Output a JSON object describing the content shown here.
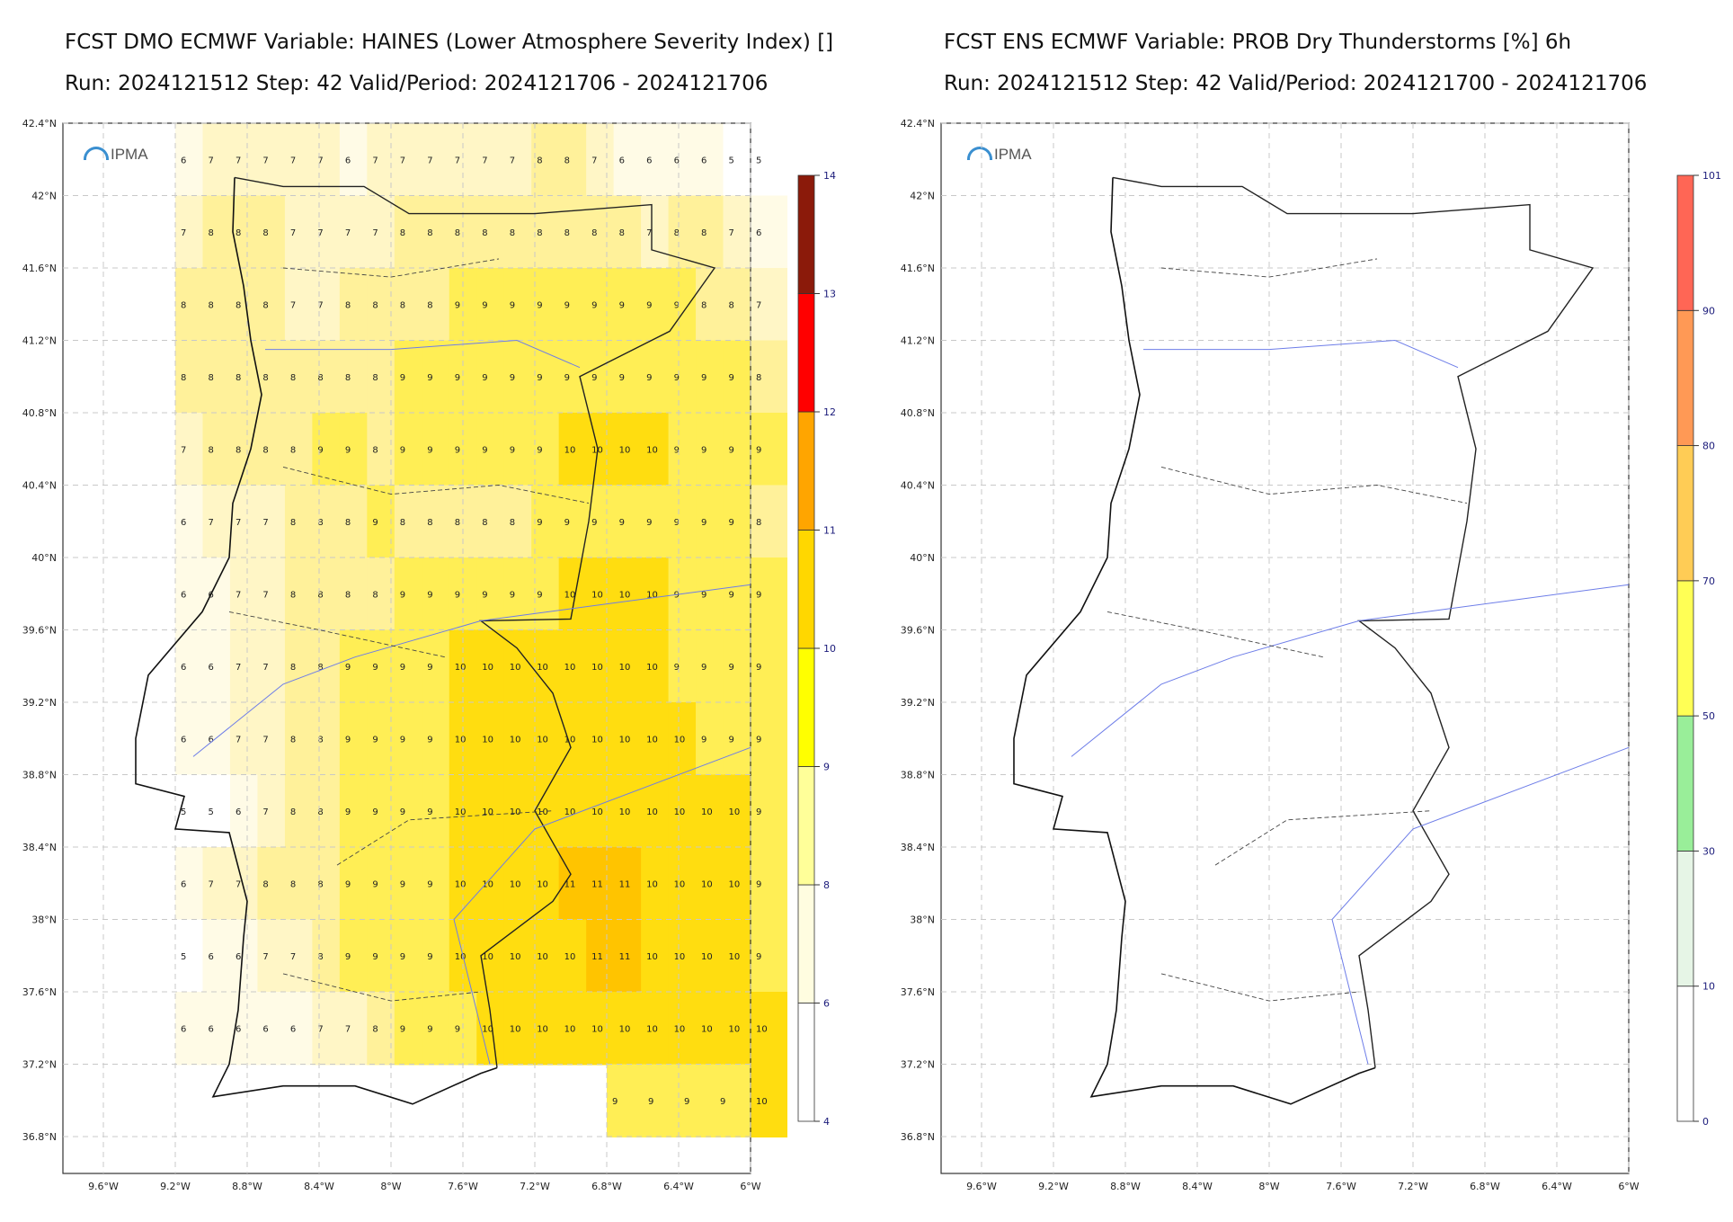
{
  "panels": [
    {
      "title_line1": "FCST DMO ECMWF Variable: HAINES (Lower Atmosphere Severity Index) []",
      "title_line2": "Run: 2024121512 Step: 42 Valid/Period: 2024121706 - 2024121706",
      "logo_text": "IPMA",
      "lat_labels": [
        "42.4°N",
        "42°N",
        "41.6°N",
        "41.2°N",
        "40.8°N",
        "40.4°N",
        "40°N",
        "39.6°N",
        "39.2°N",
        "38.8°N",
        "38.4°N",
        "38°N",
        "37.6°N",
        "37.2°N",
        "36.8°N"
      ],
      "lon_labels": [
        "9.6°W",
        "9.2°W",
        "8.8°W",
        "8.4°W",
        "8°W",
        "7.6°W",
        "7.2°W",
        "6.8°W",
        "6.4°W",
        "6°W"
      ],
      "colorbar": {
        "ticks": [
          "14",
          "13",
          "12",
          "11",
          "10",
          "9",
          "8",
          "6",
          "4"
        ],
        "colors": [
          "#ffffff",
          "#fffde0",
          "#ffff99",
          "#ffff00",
          "#ffd700",
          "#ffa500",
          "#ff0000",
          "#8b1a0a"
        ]
      }
    },
    {
      "title_line1": "FCST ENS ECMWF Variable: PROB Dry Thunderstorms [%] 6h",
      "title_line2": "Run: 2024121512 Step: 42 Valid/Period: 2024121700 - 2024121706",
      "logo_text": "IPMA",
      "lat_labels": [
        "42.4°N",
        "42°N",
        "41.6°N",
        "41.2°N",
        "40.8°N",
        "40.4°N",
        "40°N",
        "39.6°N",
        "39.2°N",
        "38.8°N",
        "38.4°N",
        "38°N",
        "37.6°N",
        "37.2°N",
        "36.8°N"
      ],
      "lon_labels": [
        "9.6°W",
        "9.2°W",
        "8.8°W",
        "8.4°W",
        "8°W",
        "7.6°W",
        "7.2°W",
        "6.8°W",
        "6.4°W",
        "6°W"
      ],
      "colorbar": {
        "ticks": [
          "101",
          "90",
          "80",
          "70",
          "50",
          "30",
          "10",
          "0"
        ],
        "colors": [
          "#ffffff",
          "#e6f5e6",
          "#99ee99",
          "#ffff55",
          "#ffcc55",
          "#ff9955",
          "#ff6655"
        ]
      }
    }
  ],
  "chart_data": {
    "type": "heatmap",
    "variable": "HAINES (Lower Atmosphere Severity Index)",
    "grid_note": "values read approximately from printed grid labels",
    "lat_range": [
      36.6,
      42.4
    ],
    "lon_range": [
      -9.8,
      -6.0
    ],
    "row_samples": [
      {
        "lat": 42.2,
        "values": [
          6,
          7,
          7,
          7,
          7,
          7,
          6,
          7,
          7,
          7,
          7,
          7,
          7,
          8,
          8,
          7,
          6,
          6,
          6,
          6,
          5,
          5
        ]
      },
      {
        "lat": 41.8,
        "values": [
          7,
          8,
          8,
          8,
          7,
          7,
          7,
          7,
          8,
          8,
          8,
          8,
          8,
          8,
          8,
          8,
          8,
          7,
          8,
          8,
          7,
          6
        ]
      },
      {
        "lat": 41.4,
        "values": [
          8,
          8,
          8,
          8,
          7,
          7,
          8,
          8,
          8,
          8,
          9,
          9,
          9,
          9,
          9,
          9,
          9,
          9,
          9,
          8,
          8,
          7
        ]
      },
      {
        "lat": 41.0,
        "values": [
          8,
          8,
          8,
          8,
          8,
          8,
          8,
          8,
          9,
          9,
          9,
          9,
          9,
          9,
          9,
          9,
          9,
          9,
          9,
          9,
          9,
          8
        ]
      },
      {
        "lat": 40.6,
        "values": [
          7,
          8,
          8,
          8,
          8,
          9,
          9,
          8,
          9,
          9,
          9,
          9,
          9,
          9,
          10,
          10,
          10,
          10,
          9,
          9,
          9,
          9
        ]
      },
      {
        "lat": 40.2,
        "values": [
          6,
          7,
          7,
          7,
          8,
          8,
          8,
          9,
          8,
          8,
          8,
          8,
          8,
          9,
          9,
          9,
          9,
          9,
          9,
          9,
          9,
          8
        ]
      },
      {
        "lat": 39.8,
        "values": [
          6,
          6,
          7,
          7,
          8,
          8,
          8,
          8,
          9,
          9,
          9,
          9,
          9,
          9,
          10,
          10,
          10,
          10,
          9,
          9,
          9,
          9
        ]
      },
      {
        "lat": 39.4,
        "values": [
          6,
          6,
          7,
          7,
          8,
          8,
          9,
          9,
          9,
          9,
          10,
          10,
          10,
          10,
          10,
          10,
          10,
          10,
          9,
          9,
          9,
          9
        ]
      },
      {
        "lat": 39.0,
        "values": [
          6,
          6,
          7,
          7,
          8,
          8,
          9,
          9,
          9,
          9,
          10,
          10,
          10,
          10,
          10,
          10,
          10,
          10,
          10,
          9,
          9,
          9
        ]
      },
      {
        "lat": 38.6,
        "values": [
          5,
          5,
          6,
          7,
          8,
          8,
          9,
          9,
          9,
          9,
          10,
          10,
          10,
          10,
          10,
          10,
          10,
          10,
          10,
          10,
          10,
          9
        ]
      },
      {
        "lat": 38.2,
        "values": [
          6,
          7,
          7,
          8,
          8,
          8,
          9,
          9,
          9,
          9,
          10,
          10,
          10,
          10,
          11,
          11,
          11,
          10,
          10,
          10,
          10,
          9
        ]
      },
      {
        "lat": 37.8,
        "values": [
          5,
          6,
          6,
          7,
          7,
          8,
          9,
          9,
          9,
          9,
          10,
          10,
          10,
          10,
          10,
          11,
          11,
          10,
          10,
          10,
          10,
          9
        ]
      },
      {
        "lat": 37.4,
        "values": [
          6,
          6,
          6,
          6,
          6,
          7,
          7,
          8,
          9,
          9,
          9,
          10,
          10,
          10,
          10,
          10,
          10,
          10,
          10,
          10,
          10,
          10
        ]
      },
      {
        "lat": 37.0,
        "values": [
          9,
          9,
          9,
          9,
          10
        ]
      }
    ],
    "probability_panel": {
      "variable": "PROB Dry Thunderstorms [%] 6h",
      "max_value": 0
    }
  }
}
